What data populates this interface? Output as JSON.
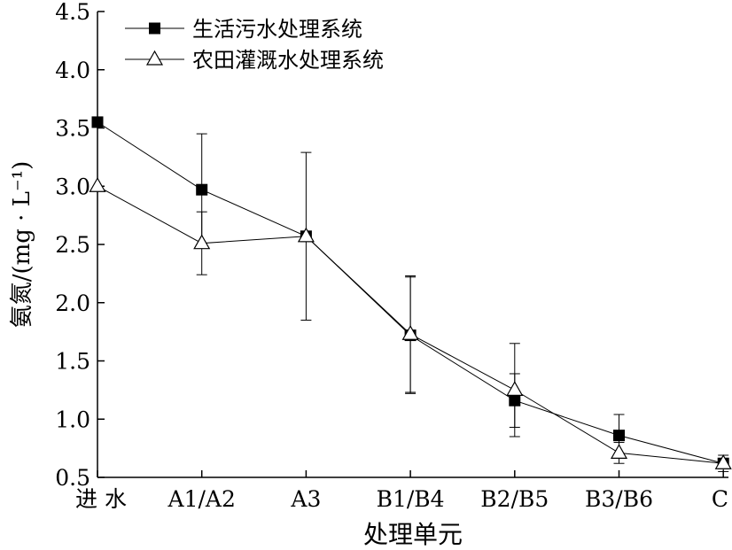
{
  "chart_data": {
    "type": "line",
    "xlabel": "处理单元",
    "ylabel": "氨氮/(mg · L⁻¹)",
    "ylim": [
      0.5,
      4.5
    ],
    "yticks": [
      "0.5",
      "1.0",
      "1.5",
      "2.0",
      "2.5",
      "3.0",
      "3.5",
      "4.0",
      "4.5"
    ],
    "categories": [
      "进 水",
      "A1/A2",
      "A3",
      "B1/B4",
      "B2/B5",
      "B3/B6",
      "C"
    ],
    "legend_position": "top-left",
    "series": [
      {
        "name": "生活污水处理系统",
        "marker": "filled-square",
        "values": [
          3.55,
          2.97,
          2.57,
          1.72,
          1.16,
          0.86,
          0.62
        ],
        "error": [
          null,
          0.48,
          null,
          0.5,
          0.23,
          0.18,
          null
        ]
      },
      {
        "name": "农田灌溉水处理系统",
        "marker": "open-triangle",
        "values": [
          3.0,
          2.51,
          2.57,
          1.73,
          1.25,
          0.71,
          0.62
        ],
        "error": [
          null,
          0.27,
          0.72,
          0.5,
          0.4,
          0.09,
          0.07
        ]
      }
    ]
  }
}
